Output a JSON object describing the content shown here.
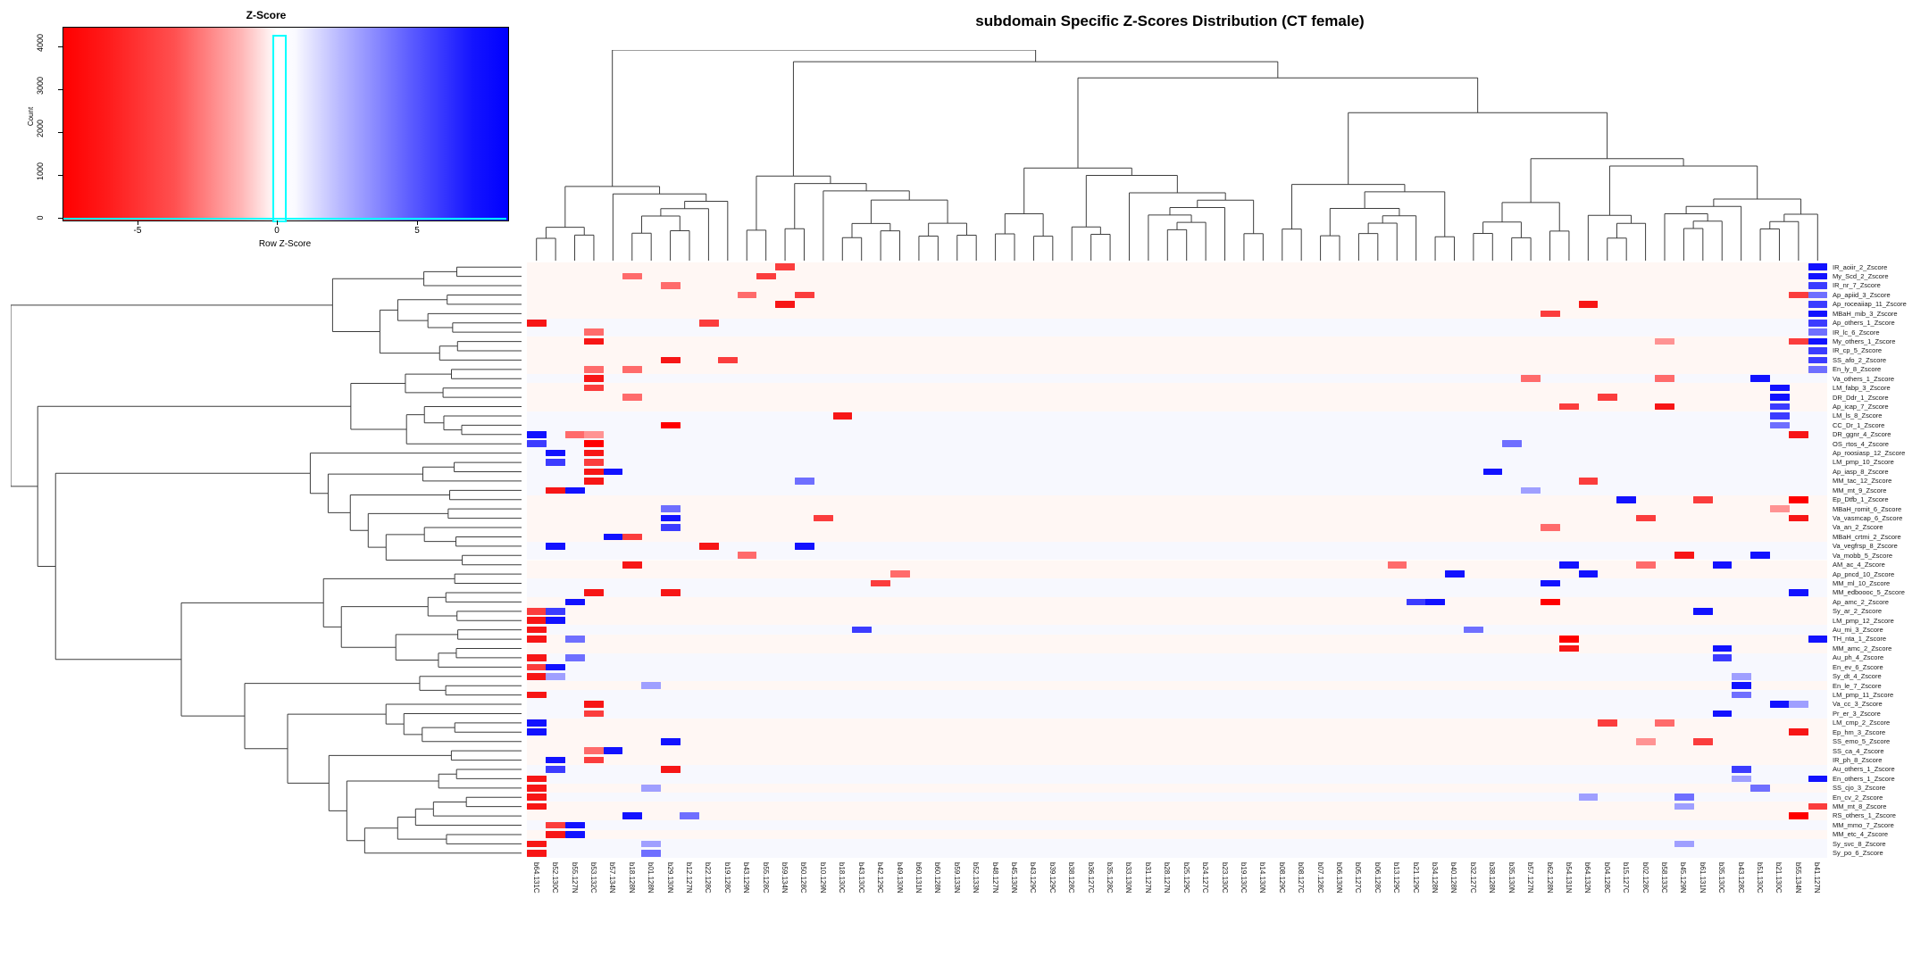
{
  "title": "subdomain Specific Z-Scores Distribution (CT female)",
  "color_key": {
    "title": "Z-Score",
    "xlabel": "Row Z-Score",
    "ylabel": "Count",
    "x_ticks": [
      {
        "label": "-5",
        "x": 84
      },
      {
        "label": "0",
        "x": 240
      },
      {
        "label": "5",
        "x": 397
      }
    ],
    "y_ticks": [
      {
        "label": "0",
        "y": 214
      },
      {
        "label": "1000",
        "y": 166
      },
      {
        "label": "2000",
        "y": 118
      },
      {
        "label": "3000",
        "y": 70
      },
      {
        "label": "4000",
        "y": 22
      }
    ],
    "gradient_low": "#ff0000",
    "gradient_mid": "#ffffff",
    "gradient_high": "#0000ff",
    "histogram_outline": "#00ffff"
  },
  "chart_data": {
    "type": "heatmap",
    "title": "subdomain Specific Z-Scores Distribution (CT female)",
    "legend_title": "Z-Score",
    "value_scale_label": "Row Z-Score",
    "value_range": [
      -8,
      8
    ],
    "columns": [
      "b64.131C",
      "b52.130C",
      "b55.127N",
      "b53.132C",
      "b57.134N",
      "b18.128N",
      "b01.128N",
      "b29.130N",
      "b12.127N",
      "b22.128C",
      "b19.128C",
      "b43.129N",
      "b55.128C",
      "b59.134N",
      "b50.128C",
      "b10.129N",
      "b18.130C",
      "b43.130C",
      "b42.129C",
      "b49.130N",
      "b60.131N",
      "b60.128N",
      "b59.133N",
      "b52.133N",
      "b48.127N",
      "b45.130N",
      "b43.129C",
      "b39.129C",
      "b38.128C",
      "b36.127C",
      "b35.128C",
      "b33.130N",
      "b31.127N",
      "b28.127N",
      "b25.129C",
      "b24.127C",
      "b23.130C",
      "b19.130C",
      "b14.130N",
      "b08.129C",
      "b08.127C",
      "b07.128C",
      "b06.130N",
      "b05.127C",
      "b06.128C",
      "b13.129C",
      "b21.129C",
      "b34.128N",
      "b40.128N",
      "b32.127C",
      "b38.128N",
      "b35.130N",
      "b57.127N",
      "b62.128N",
      "b54.131N",
      "b64.132N",
      "b04.128C",
      "b15.127C",
      "b02.128C",
      "b58.133C",
      "b45.129N",
      "b61.131N",
      "b35.130C",
      "b43.128C",
      "b51.130C",
      "b21.130C",
      "b55.134N",
      "b41.127N"
    ],
    "rows": [
      "IR_aoiir_2_Zscore",
      "My_Scd_2_Zscore",
      "IR_nr_7_Zscore",
      "Ap_apiid_3_Zscore",
      "Ap_roceaiiap_11_Zscore",
      "MBaH_mib_3_Zscore",
      "Ap_others_1_Zscore",
      "IR_lc_6_Zscore",
      "My_others_1_Zscore",
      "IR_cp_5_Zscore",
      "SS_afo_2_Zscore",
      "En_ly_8_Zscore",
      "Va_others_1_Zscore",
      "LM_fabp_3_Zscore",
      "DR_Ddr_1_Zscore",
      "Ap_icap_7_Zscore",
      "LM_ls_8_Zscore",
      "CC_Dr_1_Zscore",
      "DR_ggnr_4_Zscore",
      "OS_rtos_4_Zscore",
      "Ap_roosiasp_12_Zscore",
      "LM_pmp_10_Zscore",
      "Ap_iasp_8_Zscore",
      "MM_tac_12_Zscore",
      "MM_mt_9_Zscore",
      "Ep_Dtfb_1_Zscore",
      "MBaH_romit_6_Zscore",
      "Va_vasmcap_6_Zscore",
      "Va_an_2_Zscore",
      "MBaH_crtmi_2_Zscore",
      "Va_vegfrsp_8_Zscore",
      "Va_mobb_5_Zscore",
      "AM_ac_4_Zscore",
      "Ap_pncd_10_Zscore",
      "MM_ml_10_Zscore",
      "MM_edboooc_5_Zscore",
      "Ap_amc_2_Zscore",
      "Sy_ar_2_Zscore",
      "LM_pmp_12_Zscore",
      "Au_mi_3_Zscore",
      "TH_nta_1_Zscore",
      "MM_amc_2_Zscore",
      "Au_ph_4_Zscore",
      "En_ev_6_Zscore",
      "Sy_dt_4_Zscore",
      "En_le_7_Zscore",
      "LM_pmp_11_Zscore",
      "Va_cc_3_Zscore",
      "Pr_er_3_Zscore",
      "LM_cmp_2_Zscore",
      "Ep_hm_3_Zscore",
      "SS_emo_5_Zscore",
      "SS_ca_4_Zscore",
      "IR_ph_8_Zscore",
      "Au_others_1_Zscore",
      "En_others_1_Zscore",
      "SS_cjo_3_Zscore",
      "En_cv_2_Zscore",
      "MM_mt_8_Zscore",
      "RS_others_1_Zscore",
      "MM_mmo_7_Zscore",
      "MM_etc_4_Zscore",
      "Sy_svc_8_Zscore",
      "Sy_po_6_Zscore"
    ],
    "row_tints": "ppppppbbppppbpppbbbbbbbbbpppppbbppbbpppbppbbbpbbbpppppbbpbppbpbb",
    "palette": {
      "r1": "#ff9393",
      "r2": "#ff6b6b",
      "r3": "#fb3d3d",
      "r4": "#f71616",
      "r5": "#ff0000",
      "b1": "#9f9fff",
      "b2": "#6f6fff",
      "b3": "#3c3cff",
      "b4": "#1212ff",
      "tint_p": "#fff7f4",
      "tint_b": "#f7f8fe"
    },
    "cells": [
      [
        14,
        1,
        "r3"
      ],
      [
        68,
        1,
        "b4"
      ],
      [
        6,
        2,
        "r2"
      ],
      [
        13,
        2,
        "r3"
      ],
      [
        68,
        2,
        "b4"
      ],
      [
        8,
        3,
        "r2"
      ],
      [
        68,
        3,
        "b3"
      ],
      [
        12,
        4,
        "r2"
      ],
      [
        15,
        4,
        "r3"
      ],
      [
        67,
        4,
        "r3"
      ],
      [
        68,
        4,
        "b2"
      ],
      [
        14,
        5,
        "r4"
      ],
      [
        56,
        5,
        "r4"
      ],
      [
        68,
        5,
        "b3"
      ],
      [
        54,
        6,
        "r3"
      ],
      [
        68,
        6,
        "b4"
      ],
      [
        1,
        7,
        "r4"
      ],
      [
        10,
        7,
        "r3"
      ],
      [
        68,
        7,
        "b3"
      ],
      [
        4,
        8,
        "r2"
      ],
      [
        68,
        8,
        "b2"
      ],
      [
        4,
        9,
        "r4"
      ],
      [
        60,
        9,
        "r1"
      ],
      [
        67,
        9,
        "r3"
      ],
      [
        68,
        9,
        "b4"
      ],
      [
        68,
        10,
        "b3"
      ],
      [
        8,
        11,
        "r4"
      ],
      [
        11,
        11,
        "r3"
      ],
      [
        68,
        11,
        "b3"
      ],
      [
        4,
        12,
        "r2"
      ],
      [
        6,
        12,
        "r2"
      ],
      [
        68,
        12,
        "b2"
      ],
      [
        4,
        13,
        "r4"
      ],
      [
        53,
        13,
        "r2"
      ],
      [
        60,
        13,
        "r2"
      ],
      [
        65,
        13,
        "b4"
      ],
      [
        4,
        14,
        "r3"
      ],
      [
        66,
        14,
        "b4"
      ],
      [
        6,
        15,
        "r2"
      ],
      [
        57,
        15,
        "r3"
      ],
      [
        66,
        15,
        "b4"
      ],
      [
        55,
        16,
        "r3"
      ],
      [
        60,
        16,
        "r4"
      ],
      [
        66,
        16,
        "b3"
      ],
      [
        17,
        17,
        "r4"
      ],
      [
        66,
        17,
        "b3"
      ],
      [
        8,
        18,
        "r5"
      ],
      [
        66,
        18,
        "b2"
      ],
      [
        1,
        19,
        "b4"
      ],
      [
        3,
        19,
        "r2"
      ],
      [
        4,
        19,
        "r1"
      ],
      [
        67,
        19,
        "r4"
      ],
      [
        1,
        20,
        "b3"
      ],
      [
        4,
        20,
        "r5"
      ],
      [
        52,
        20,
        "b2"
      ],
      [
        2,
        21,
        "b4"
      ],
      [
        4,
        21,
        "r4"
      ],
      [
        2,
        22,
        "b3"
      ],
      [
        4,
        22,
        "r3"
      ],
      [
        4,
        23,
        "r4"
      ],
      [
        5,
        23,
        "b4"
      ],
      [
        51,
        23,
        "b4"
      ],
      [
        4,
        24,
        "r4"
      ],
      [
        15,
        24,
        "b2"
      ],
      [
        56,
        24,
        "r3"
      ],
      [
        2,
        25,
        "r4"
      ],
      [
        3,
        25,
        "b4"
      ],
      [
        53,
        25,
        "b1"
      ],
      [
        58,
        26,
        "b4"
      ],
      [
        62,
        26,
        "r3"
      ],
      [
        67,
        26,
        "r5"
      ],
      [
        8,
        27,
        "b2"
      ],
      [
        66,
        27,
        "r1"
      ],
      [
        8,
        28,
        "b4"
      ],
      [
        16,
        28,
        "r3"
      ],
      [
        59,
        28,
        "r3"
      ],
      [
        67,
        28,
        "r4"
      ],
      [
        8,
        29,
        "b3"
      ],
      [
        54,
        29,
        "r2"
      ],
      [
        5,
        30,
        "b4"
      ],
      [
        6,
        30,
        "r3"
      ],
      [
        2,
        31,
        "b4"
      ],
      [
        10,
        31,
        "r4"
      ],
      [
        15,
        31,
        "b4"
      ],
      [
        12,
        32,
        "r2"
      ],
      [
        61,
        32,
        "r4"
      ],
      [
        65,
        32,
        "b4"
      ],
      [
        6,
        33,
        "r4"
      ],
      [
        46,
        33,
        "r2"
      ],
      [
        55,
        33,
        "b4"
      ],
      [
        59,
        33,
        "r2"
      ],
      [
        63,
        33,
        "b4"
      ],
      [
        20,
        34,
        "r2"
      ],
      [
        49,
        34,
        "b4"
      ],
      [
        56,
        34,
        "b4"
      ],
      [
        19,
        35,
        "r3"
      ],
      [
        54,
        35,
        "b4"
      ],
      [
        4,
        36,
        "r4"
      ],
      [
        8,
        36,
        "r4"
      ],
      [
        67,
        36,
        "b4"
      ],
      [
        3,
        37,
        "b4"
      ],
      [
        47,
        37,
        "b3"
      ],
      [
        48,
        37,
        "b4"
      ],
      [
        54,
        37,
        "r5"
      ],
      [
        1,
        38,
        "r3"
      ],
      [
        2,
        38,
        "b3"
      ],
      [
        62,
        38,
        "b4"
      ],
      [
        1,
        39,
        "r4"
      ],
      [
        2,
        39,
        "b4"
      ],
      [
        1,
        40,
        "r4"
      ],
      [
        18,
        40,
        "b3"
      ],
      [
        50,
        40,
        "b2"
      ],
      [
        1,
        41,
        "r4"
      ],
      [
        3,
        41,
        "b2"
      ],
      [
        55,
        41,
        "r5"
      ],
      [
        68,
        41,
        "b4"
      ],
      [
        55,
        42,
        "r4"
      ],
      [
        63,
        42,
        "b4"
      ],
      [
        1,
        43,
        "r4"
      ],
      [
        3,
        43,
        "b2"
      ],
      [
        63,
        43,
        "b3"
      ],
      [
        1,
        44,
        "r3"
      ],
      [
        2,
        44,
        "b4"
      ],
      [
        1,
        45,
        "r4"
      ],
      [
        2,
        45,
        "b1"
      ],
      [
        64,
        45,
        "b1"
      ],
      [
        7,
        46,
        "b1"
      ],
      [
        64,
        46,
        "b4"
      ],
      [
        1,
        47,
        "r4"
      ],
      [
        64,
        47,
        "b2"
      ],
      [
        4,
        48,
        "r4"
      ],
      [
        66,
        48,
        "b4"
      ],
      [
        67,
        48,
        "b1"
      ],
      [
        4,
        49,
        "r3"
      ],
      [
        63,
        49,
        "b4"
      ],
      [
        1,
        50,
        "b4"
      ],
      [
        57,
        50,
        "r3"
      ],
      [
        60,
        50,
        "r2"
      ],
      [
        1,
        51,
        "b4"
      ],
      [
        67,
        51,
        "r4"
      ],
      [
        8,
        52,
        "b4"
      ],
      [
        59,
        52,
        "r1"
      ],
      [
        62,
        52,
        "r3"
      ],
      [
        4,
        53,
        "r2"
      ],
      [
        5,
        53,
        "b4"
      ],
      [
        4,
        54,
        "r3"
      ],
      [
        2,
        54,
        "b4"
      ],
      [
        2,
        55,
        "b3"
      ],
      [
        8,
        55,
        "r4"
      ],
      [
        64,
        55,
        "b3"
      ],
      [
        1,
        56,
        "r4"
      ],
      [
        64,
        56,
        "b1"
      ],
      [
        68,
        56,
        "b4"
      ],
      [
        1,
        57,
        "r4"
      ],
      [
        7,
        57,
        "b1"
      ],
      [
        65,
        57,
        "b2"
      ],
      [
        1,
        58,
        "r4"
      ],
      [
        56,
        58,
        "b1"
      ],
      [
        61,
        58,
        "b2"
      ],
      [
        1,
        59,
        "r4"
      ],
      [
        61,
        59,
        "b1"
      ],
      [
        68,
        59,
        "r3"
      ],
      [
        6,
        60,
        "b4"
      ],
      [
        9,
        60,
        "b2"
      ],
      [
        67,
        60,
        "r5"
      ],
      [
        2,
        61,
        "r3"
      ],
      [
        3,
        61,
        "b4"
      ],
      [
        2,
        62,
        "r4"
      ],
      [
        3,
        62,
        "b4"
      ],
      [
        1,
        63,
        "r4"
      ],
      [
        7,
        63,
        "b1"
      ],
      [
        61,
        63,
        "b1"
      ],
      [
        1,
        64,
        "r4"
      ],
      [
        7,
        64,
        "b2"
      ]
    ]
  }
}
